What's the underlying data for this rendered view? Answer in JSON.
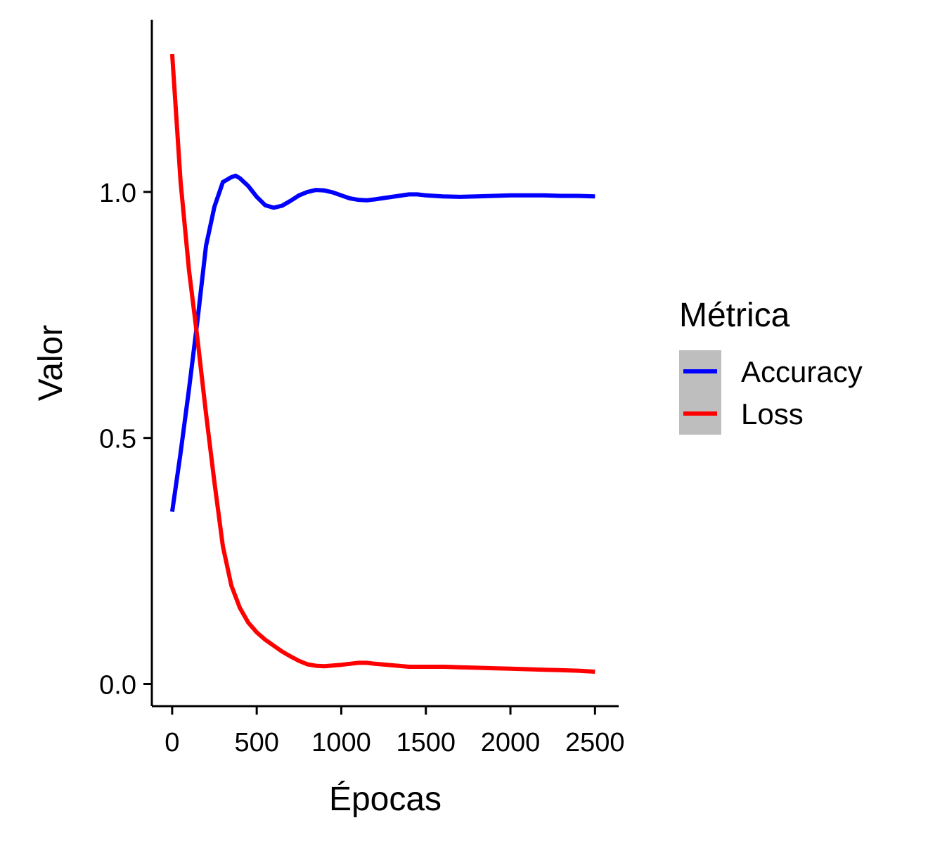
{
  "chart_data": {
    "type": "line",
    "xlabel": "Épocas",
    "ylabel": "Valor",
    "xlim": [
      -120,
      2640
    ],
    "ylim": [
      -0.045,
      1.35
    ],
    "xticks": [
      0,
      500,
      1000,
      1500,
      2000,
      2500
    ],
    "xtick_labels": [
      "0",
      "500",
      "1000",
      "1500",
      "2000",
      "2500"
    ],
    "yticks": [
      0.0,
      0.5,
      1.0
    ],
    "ytick_labels": [
      "0.0",
      "0.5",
      "1.0"
    ],
    "grid": false,
    "legend": {
      "title": "Métrica",
      "placement": "right",
      "key_background": "#bebebe"
    },
    "series": [
      {
        "name": "Accuracy",
        "color": "#0000ff",
        "x": [
          0,
          50,
          100,
          150,
          200,
          250,
          300,
          350,
          375,
          400,
          450,
          500,
          550,
          600,
          650,
          700,
          750,
          800,
          850,
          900,
          950,
          1000,
          1050,
          1100,
          1150,
          1200,
          1300,
          1400,
          1450,
          1500,
          1600,
          1700,
          1800,
          1900,
          2000,
          2100,
          2200,
          2300,
          2400,
          2500
        ],
        "y": [
          0.35,
          0.47,
          0.6,
          0.74,
          0.89,
          0.97,
          1.02,
          1.03,
          1.033,
          1.028,
          1.012,
          0.99,
          0.973,
          0.968,
          0.972,
          0.982,
          0.993,
          1.0,
          1.004,
          1.003,
          0.999,
          0.993,
          0.987,
          0.984,
          0.983,
          0.985,
          0.99,
          0.995,
          0.995,
          0.993,
          0.991,
          0.99,
          0.991,
          0.992,
          0.993,
          0.993,
          0.993,
          0.992,
          0.992,
          0.991
        ]
      },
      {
        "name": "Loss",
        "color": "#ff0000",
        "x": [
          0,
          50,
          100,
          150,
          200,
          250,
          300,
          350,
          400,
          450,
          500,
          550,
          600,
          650,
          700,
          750,
          800,
          850,
          900,
          1000,
          1100,
          1150,
          1200,
          1300,
          1400,
          1500,
          1600,
          1700,
          1800,
          1900,
          2000,
          2100,
          2200,
          2300,
          2400,
          2500
        ],
        "y": [
          1.28,
          1.02,
          0.84,
          0.7,
          0.55,
          0.41,
          0.28,
          0.2,
          0.155,
          0.125,
          0.105,
          0.09,
          0.078,
          0.066,
          0.056,
          0.047,
          0.04,
          0.037,
          0.036,
          0.039,
          0.043,
          0.043,
          0.041,
          0.038,
          0.035,
          0.035,
          0.035,
          0.034,
          0.033,
          0.032,
          0.031,
          0.03,
          0.029,
          0.028,
          0.027,
          0.025
        ]
      }
    ]
  }
}
